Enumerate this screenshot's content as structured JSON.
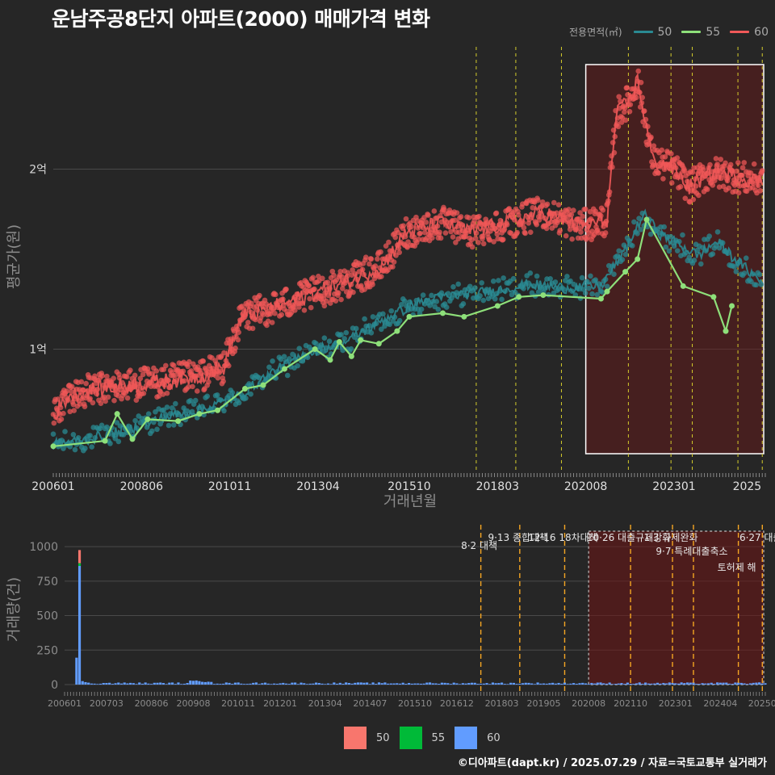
{
  "title": "운남주공8단지 아파트(2000) 매매가격 변화",
  "legend_top": {
    "title": "전용면적(㎡)",
    "items": [
      {
        "label": "50",
        "color": "#2a8a92"
      },
      {
        "label": "55",
        "color": "#8ee07a"
      },
      {
        "label": "60",
        "color": "#f05858"
      }
    ]
  },
  "legend_bottom": {
    "items": [
      {
        "label": "50",
        "color": "#f8766d"
      },
      {
        "label": "55",
        "color": "#00ba38"
      },
      {
        "label": "60",
        "color": "#619cff"
      }
    ]
  },
  "footer": "©디아파트(dapt.kr) / 2025.07.29 / 자료=국토교통부 실거래가",
  "chart_data": [
    {
      "type": "line",
      "xlabel": "거래년월",
      "ylabel": "평균가(원)",
      "x_range": [
        "2006-01",
        "2025-07"
      ],
      "ylim": [
        32000000,
        268000000
      ],
      "x_ticks": [
        "200601",
        "200806",
        "201011",
        "201304",
        "201510",
        "201803",
        "202008",
        "202301",
        "2025"
      ],
      "y_ticks": [
        {
          "value": 100000000,
          "label": "1억"
        },
        {
          "value": 200000000,
          "label": "2억"
        }
      ],
      "policy_lines": [
        "2017-08",
        "2018-09",
        "2019-12",
        "2021-10",
        "2022-12",
        "2023-07",
        "2024-10",
        "2025-06"
      ],
      "highlight_box": {
        "from": "2020-08",
        "to": "2025-07"
      },
      "series": [
        {
          "name": "50",
          "color": "#2a8a92",
          "points": [
            [
              "2006-01",
              47000000
            ],
            [
              "2007-01",
              50000000
            ],
            [
              "2008-01",
              55000000
            ],
            [
              "2009-01",
              62000000
            ],
            [
              "2010-01",
              66000000
            ],
            [
              "2011-01",
              73000000
            ],
            [
              "2012-01",
              87000000
            ],
            [
              "2013-01",
              98000000
            ],
            [
              "2014-01",
              104000000
            ],
            [
              "2015-01",
              116000000
            ],
            [
              "2016-01",
              126000000
            ],
            [
              "2017-01",
              130000000
            ],
            [
              "2018-01",
              132000000
            ],
            [
              "2019-01",
              136000000
            ],
            [
              "2020-01",
              134000000
            ],
            [
              "2021-01",
              135000000
            ],
            [
              "2021-09",
              155000000
            ],
            [
              "2022-03",
              175000000
            ],
            [
              "2022-09",
              163000000
            ],
            [
              "2023-03",
              158000000
            ],
            [
              "2023-09",
              152000000
            ],
            [
              "2024-03",
              160000000
            ],
            [
              "2024-09",
              150000000
            ],
            [
              "2025-06",
              137000000
            ]
          ]
        },
        {
          "name": "55",
          "color": "#8ee07a",
          "points": [
            [
              "2006-01",
              46000000
            ],
            [
              "2007-06",
              49000000
            ],
            [
              "2007-10",
              64000000
            ],
            [
              "2008-03",
              50000000
            ],
            [
              "2008-08",
              61000000
            ],
            [
              "2009-06",
              60000000
            ],
            [
              "2010-01",
              64000000
            ],
            [
              "2010-07",
              66000000
            ],
            [
              "2011-04",
              78000000
            ],
            [
              "2011-10",
              80000000
            ],
            [
              "2012-05",
              89000000
            ],
            [
              "2013-03",
              100000000
            ],
            [
              "2013-08",
              94000000
            ],
            [
              "2013-11",
              104000000
            ],
            [
              "2014-03",
              96000000
            ],
            [
              "2014-06",
              105000000
            ],
            [
              "2014-12",
              103000000
            ],
            [
              "2015-06",
              110000000
            ],
            [
              "2015-10",
              118000000
            ],
            [
              "2016-09",
              120000000
            ],
            [
              "2017-04",
              118000000
            ],
            [
              "2018-03",
              124000000
            ],
            [
              "2018-10",
              129000000
            ],
            [
              "2019-06",
              130000000
            ],
            [
              "2021-01",
              128000000
            ],
            [
              "2021-03",
              132000000
            ],
            [
              "2021-09",
              143000000
            ],
            [
              "2022-01",
              150000000
            ],
            [
              "2022-04",
              172000000
            ],
            [
              "2023-04",
              135000000
            ],
            [
              "2024-02",
              129000000
            ],
            [
              "2024-06",
              110000000
            ],
            [
              "2024-08",
              124000000
            ]
          ]
        },
        {
          "name": "60",
          "color": "#f05858",
          "points": [
            [
              "2006-01",
              63000000
            ],
            [
              "2006-06",
              74000000
            ],
            [
              "2007-01",
              77000000
            ],
            [
              "2008-01",
              80000000
            ],
            [
              "2009-01",
              82000000
            ],
            [
              "2010-01",
              85000000
            ],
            [
              "2010-09",
              90000000
            ],
            [
              "2011-03",
              118000000
            ],
            [
              "2012-01",
              123000000
            ],
            [
              "2013-01",
              130000000
            ],
            [
              "2014-01",
              137000000
            ],
            [
              "2015-01",
              146000000
            ],
            [
              "2015-09",
              165000000
            ],
            [
              "2016-09",
              170000000
            ],
            [
              "2017-06",
              165000000
            ],
            [
              "2018-06",
              170000000
            ],
            [
              "2019-06",
              176000000
            ],
            [
              "2020-06",
              168000000
            ],
            [
              "2021-03",
              172000000
            ],
            [
              "2021-06",
              230000000
            ],
            [
              "2021-11",
              240000000
            ],
            [
              "2022-01",
              250000000
            ],
            [
              "2022-06",
              205000000
            ],
            [
              "2023-01",
              200000000
            ],
            [
              "2023-06",
              190000000
            ],
            [
              "2024-01",
              198000000
            ],
            [
              "2024-06",
              197000000
            ],
            [
              "2025-06",
              193000000
            ]
          ]
        }
      ]
    },
    {
      "type": "bar",
      "xlabel": "",
      "ylabel": "거래량(건)",
      "ylim": [
        0,
        1100
      ],
      "y_ticks": [
        0,
        250,
        500,
        750,
        1000
      ],
      "x_ticks": [
        "200601",
        "200703",
        "200806",
        "200908",
        "201011",
        "201201",
        "201304",
        "201407",
        "201510",
        "201612",
        "201803",
        "201905",
        "202008",
        "202110",
        "202301",
        "202404",
        "20250"
      ],
      "highlight_box": {
        "from": "2020-08",
        "to": "2025-07"
      },
      "policy_events": [
        {
          "month": "2017-08",
          "label": "8·2 대책"
        },
        {
          "month": "2018-09",
          "label": "9·13 종합대책"
        },
        {
          "month": "2019-12",
          "label": "12·16 18차대책"
        },
        {
          "month": "2021-10",
          "label": "10·26 대출규제강화"
        },
        {
          "month": "2022-12",
          "label": "1·3 규제완화"
        },
        {
          "month": "2023-07",
          "label": "9·7 특례대출축소"
        },
        {
          "month": "2024-10",
          "label": "토허제 해"
        },
        {
          "month": "2025-06",
          "label": "6·27 대출"
        }
      ],
      "series": [
        {
          "name": "50",
          "color": "#f8766d",
          "values": [
            {
              "month": "2006-06",
              "value": 95
            }
          ]
        },
        {
          "name": "55",
          "color": "#00ba38",
          "values": [
            {
              "month": "2006-06",
              "value": 20
            }
          ]
        },
        {
          "name": "60",
          "color": "#619cff",
          "values": [
            {
              "month": "2006-05",
              "value": 195
            },
            {
              "month": "2006-06",
              "value": 860
            },
            {
              "month": "2006-07",
              "value": 25
            },
            {
              "month": "2006-08",
              "value": 18
            },
            {
              "month": "2006-09",
              "value": 14
            }
          ]
        }
      ]
    }
  ]
}
